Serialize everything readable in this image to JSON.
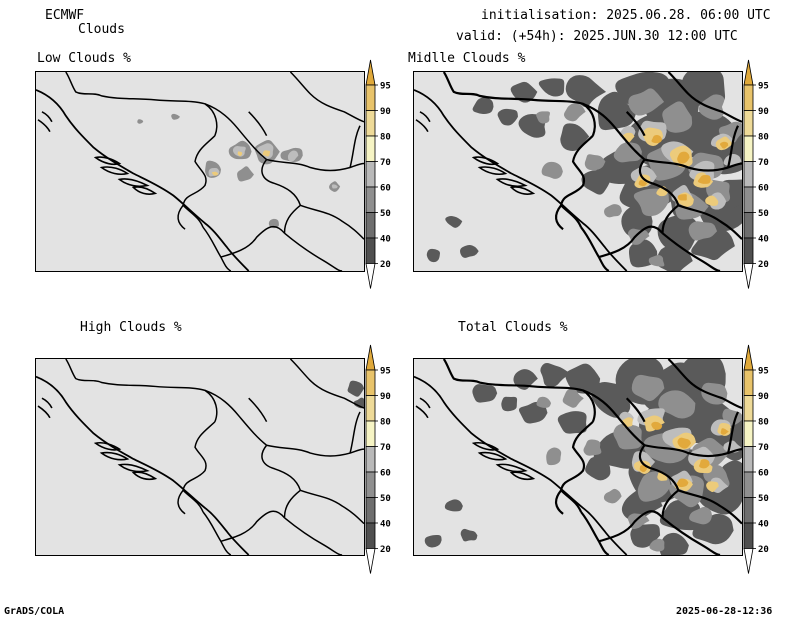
{
  "header": {
    "model": "ECMWF",
    "product": "Clouds",
    "init_line": "initialisation: 2025.06.28. 06:00 UTC",
    "valid_line": "valid: (+54h): 2025.JUN.30 12:00 UTC"
  },
  "panels": {
    "low": {
      "title": "Low Clouds %"
    },
    "mid": {
      "title": "Midlle Clouds %"
    },
    "high": {
      "title": "High Clouds %"
    },
    "total": {
      "title": "Total Clouds %"
    }
  },
  "colorbar": {
    "levels": [
      "20",
      "40",
      "50",
      "60",
      "70",
      "80",
      "90",
      "95"
    ],
    "colors": [
      "#ffffff",
      "#4f4f4f",
      "#6e6e6e",
      "#8f8f8f",
      "#b9b9b9",
      "#f6f4c4",
      "#eeda98",
      "#e8c36a",
      "#e0a93a"
    ]
  },
  "footer": {
    "left": "GrADS/COLA",
    "right": "2025-06-28-12:36"
  }
}
